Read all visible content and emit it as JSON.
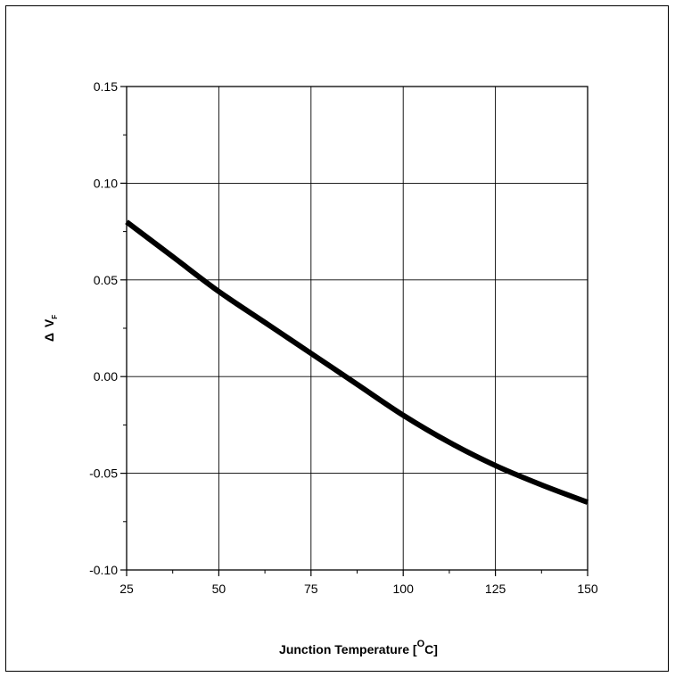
{
  "chart_data": {
    "type": "line",
    "title": "",
    "xlabel": "Junction Temperature [°C]",
    "xlabel_main": "Junction Temperature [",
    "xlabel_sup": "O",
    "xlabel_end": "C]",
    "ylabel_delta": "Δ",
    "ylabel_main": "V",
    "ylabel_sub": "F",
    "xlim": [
      25,
      150
    ],
    "ylim": [
      -0.1,
      0.15
    ],
    "x_ticks": [
      "25",
      "50",
      "75",
      "100",
      "125",
      "150"
    ],
    "y_ticks": [
      "0.15",
      "0.10",
      "0.05",
      "0.00",
      "-0.05",
      "-0.10"
    ],
    "grid": true,
    "series": [
      {
        "color": "#000000",
        "x": [
          25,
          37.5,
          50,
          62.5,
          75,
          87.5,
          100,
          112.5,
          125,
          137.5,
          150
        ],
        "y": [
          0.08,
          0.062,
          0.044,
          0.028,
          0.012,
          -0.004,
          -0.02,
          -0.034,
          -0.046,
          -0.056,
          -0.065
        ]
      }
    ]
  }
}
